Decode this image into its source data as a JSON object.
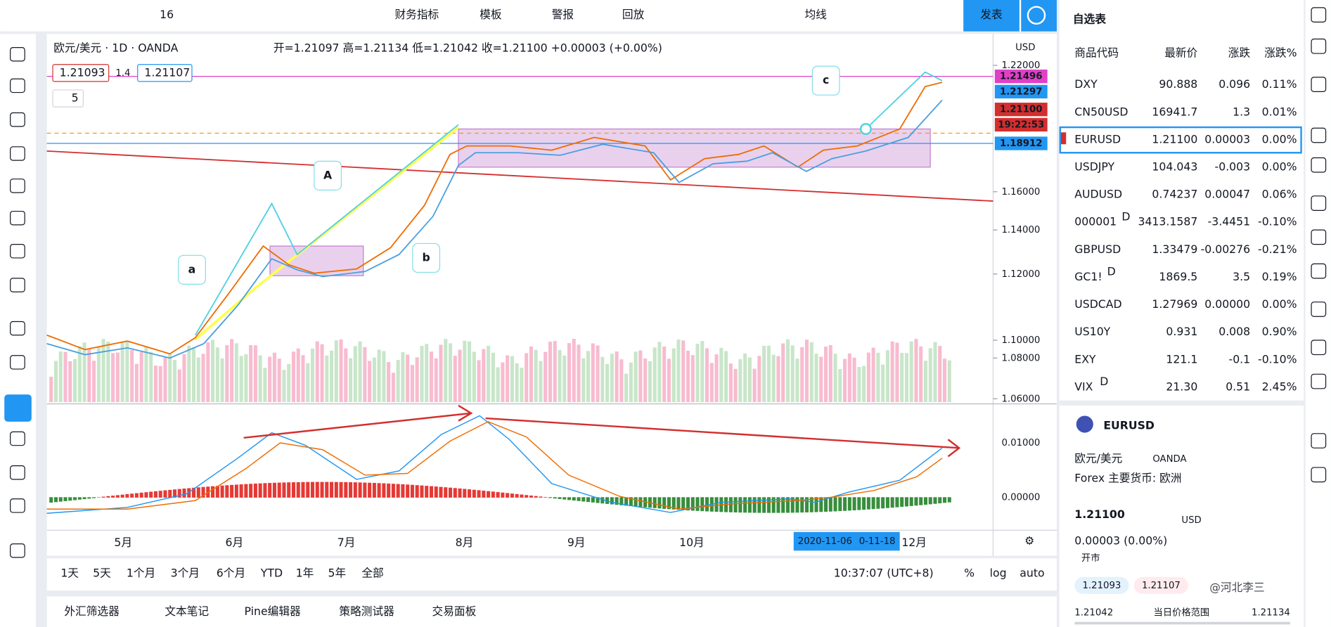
{
  "toolbar": {
    "font_size": "16",
    "items": [
      "财务指标",
      "模板",
      "警报",
      "回放"
    ],
    "ma": "均线",
    "publish": "发表"
  },
  "chart": {
    "symbol": "欧元/美元 · 1D · OANDA",
    "ohlc": "开=1.21097 高=1.21134 低=1.21042 收=1.21100 +0.00003 (+0.00%)",
    "bid": "1.21093",
    "spread": "1.4",
    "ask": "1.21107",
    "indicator_count": "5",
    "currency": "USD",
    "price_ticks": [
      "1.22000",
      "1.16000",
      "1.14000",
      "1.12000",
      "1.10000",
      "1.08000",
      "1.06000"
    ],
    "price_tags": [
      {
        "text": "1.21496",
        "color": "#e040c8"
      },
      {
        "text": "1.21297",
        "color": "#2196f3"
      },
      {
        "text": "1.21100",
        "color": "#d32f2f"
      },
      {
        "text": "19:22:53",
        "color": "#d32f2f"
      },
      {
        "text": "1.18912",
        "color": "#2196f3"
      }
    ],
    "macd_ticks": [
      "0.01000",
      "0.00000"
    ],
    "time_ticks": [
      "5月",
      "6月",
      "7月",
      "8月",
      "9月",
      "10月",
      "12月"
    ],
    "cursor_dates": [
      "2020-11-06",
      "0-11-18"
    ],
    "annotations": [
      "a",
      "A",
      "b",
      "c"
    ]
  },
  "range_bar": {
    "ranges": [
      "1天",
      "5天",
      "1个月",
      "3个月",
      "6个月",
      "YTD",
      "1年",
      "5年",
      "全部"
    ],
    "clock": "10:37:07 (UTC+8)",
    "options": [
      "%",
      "log",
      "auto"
    ]
  },
  "bottom_tabs": [
    "外汇筛选器",
    "文本笔记",
    "Pine编辑器",
    "策略测试器",
    "交易面板"
  ],
  "watchlist": {
    "title": "自选表",
    "columns": [
      "商品代码",
      "最新价",
      "涨跌",
      "涨跌%"
    ],
    "rows": [
      {
        "symbol": "DXY",
        "last": "90.888",
        "change": "0.096",
        "pct": "0.11%"
      },
      {
        "symbol": "CN50USD",
        "last": "16941.7",
        "change": "1.3",
        "pct": "0.01%"
      },
      {
        "symbol": "EURUSD",
        "last": "1.21100",
        "change": "0.00003",
        "pct": "0.00%"
      },
      {
        "symbol": "USDJPY",
        "last": "104.043",
        "change": "-0.003",
        "pct": "0.00%"
      },
      {
        "symbol": "AUDUSD",
        "last": "0.74237",
        "change": "0.00047",
        "pct": "0.06%"
      },
      {
        "symbol": "000001",
        "badge": "D",
        "last": "3413.1587",
        "change": "-3.4451",
        "pct": "-0.10%"
      },
      {
        "symbol": "GBPUSD",
        "last": "1.33479",
        "change": "-0.00276",
        "pct": "-0.21%"
      },
      {
        "symbol": "GC1!",
        "badge": "D",
        "last": "1869.5",
        "change": "3.5",
        "pct": "0.19%"
      },
      {
        "symbol": "USDCAD",
        "last": "1.27969",
        "change": "0.00000",
        "pct": "0.00%"
      },
      {
        "symbol": "US10Y",
        "last": "0.931",
        "change": "0.008",
        "pct": "0.90%"
      },
      {
        "symbol": "EXY",
        "last": "121.1",
        "change": "-0.1",
        "pct": "-0.10%"
      },
      {
        "symbol": "VIX",
        "badge": "D",
        "last": "21.30",
        "change": "0.51",
        "pct": "2.45%"
      }
    ]
  },
  "details": {
    "symbol": "EURUSD",
    "name": "欧元/美元",
    "exchange": "OANDA",
    "category": "Forex 主要货币: 欧洲",
    "price": "1.21100",
    "currency": "USD",
    "change": "0.00003 (0.00%)",
    "status": "开市",
    "bid": "1.21093",
    "ask": "1.21107",
    "low": "1.21042",
    "range_label": "当日价格范围",
    "high": "1.21134"
  },
  "watermark": "@河北李三"
}
